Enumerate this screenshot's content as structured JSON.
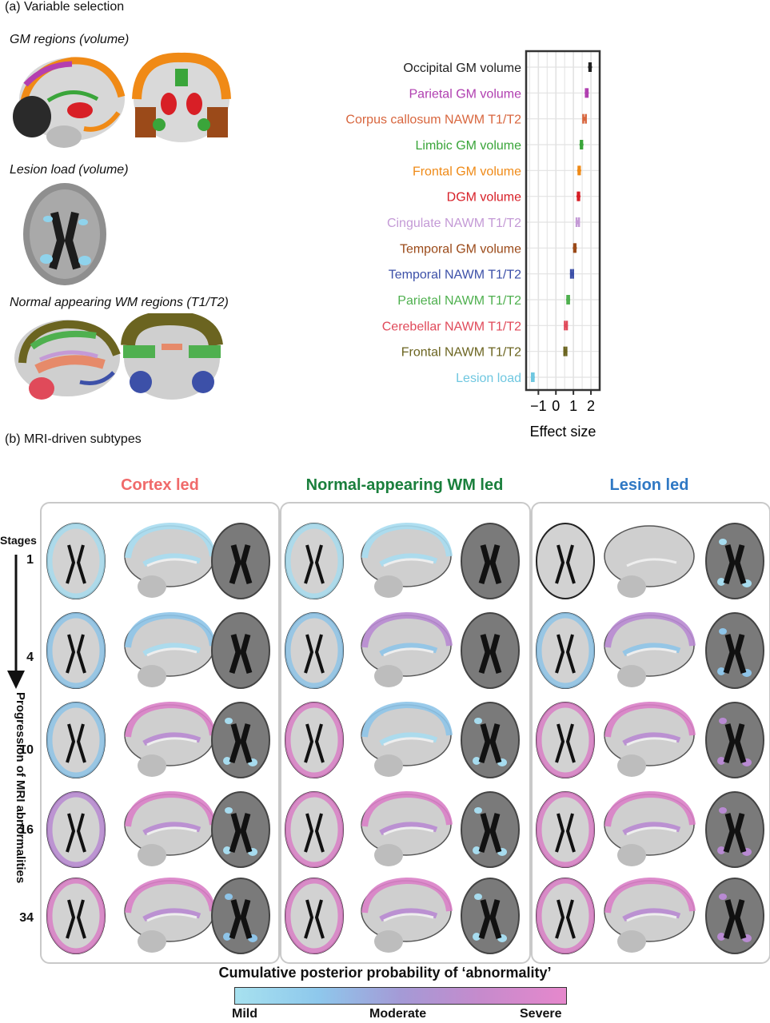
{
  "panel_a": {
    "label": "(a) Variable selection",
    "gm_title": "GM regions (volume)",
    "lesion_title": "Lesion load (volume)",
    "nawm_title": "Normal appearing WM regions (T1/T2)"
  },
  "panel_b": {
    "label": "(b) MRI-driven subtypes",
    "subtypes": [
      {
        "title": "Cortex led",
        "color": "#f06a6a"
      },
      {
        "title": "Normal-appearing WM led",
        "color": "#1a7f3c"
      },
      {
        "title": "Lesion led",
        "color": "#2f78c4"
      }
    ],
    "stages_label": "Stages",
    "stages": [
      "1",
      "4",
      "10",
      "16",
      "34"
    ],
    "progression_label": "Progression of MRI abnormalities",
    "colorbar_title": "Cumulative posterior probability of ‘abnormality’",
    "colorbar_ticks": [
      "Mild",
      "Moderate",
      "Severe"
    ]
  },
  "chart_data": {
    "type": "scatter",
    "xlabel": "Effect size",
    "ylabel": "",
    "xlim": [
      -1.7,
      2.5
    ],
    "xticks": [
      -1,
      0,
      1,
      2
    ],
    "xtick_labels": [
      "−1",
      "0",
      "1",
      "2"
    ],
    "grid": true,
    "series": [
      {
        "name": "Occipital GM volume",
        "value": 1.95,
        "ci": [
          1.91,
          1.99
        ],
        "color": "#222222"
      },
      {
        "name": "Parietal GM volume",
        "value": 1.76,
        "ci": [
          1.71,
          1.81
        ],
        "color": "#b03fb0"
      },
      {
        "name": "Corpus callosum NAWM  T1/T2",
        "value": 1.63,
        "ci": [
          1.56,
          1.71
        ],
        "color": "#d8663e"
      },
      {
        "name": "Limbic GM volume",
        "value": 1.46,
        "ci": [
          1.42,
          1.5
        ],
        "color": "#3aa53a"
      },
      {
        "name": "Frontal GM volume",
        "value": 1.33,
        "ci": [
          1.29,
          1.37
        ],
        "color": "#ef8a17"
      },
      {
        "name": "DGM volume",
        "value": 1.29,
        "ci": [
          1.25,
          1.33
        ],
        "color": "#d71f27"
      },
      {
        "name": "Cingulate NAWM T1/T2",
        "value": 1.25,
        "ci": [
          1.18,
          1.32
        ],
        "color": "#c49ad6"
      },
      {
        "name": "Temporal GM volume",
        "value": 1.08,
        "ci": [
          1.04,
          1.12
        ],
        "color": "#9b4a19"
      },
      {
        "name": "Temporal NAWM T1/T2",
        "value": 0.92,
        "ci": [
          0.86,
          0.98
        ],
        "color": "#3c50a8"
      },
      {
        "name": "Parietal NAWM T1/T2",
        "value": 0.7,
        "ci": [
          0.65,
          0.75
        ],
        "color": "#4fb04f"
      },
      {
        "name": "Cerebellar NAWM T1/T2",
        "value": 0.57,
        "ci": [
          0.51,
          0.63
        ],
        "color": "#e04a5a"
      },
      {
        "name": "Frontal NAWM T1/T2",
        "value": 0.54,
        "ci": [
          0.48,
          0.6
        ],
        "color": "#6b6420"
      },
      {
        "name": "Lesion load",
        "value": -1.32,
        "ci": [
          -1.37,
          -1.27
        ],
        "color": "#6fc7e0"
      }
    ]
  }
}
